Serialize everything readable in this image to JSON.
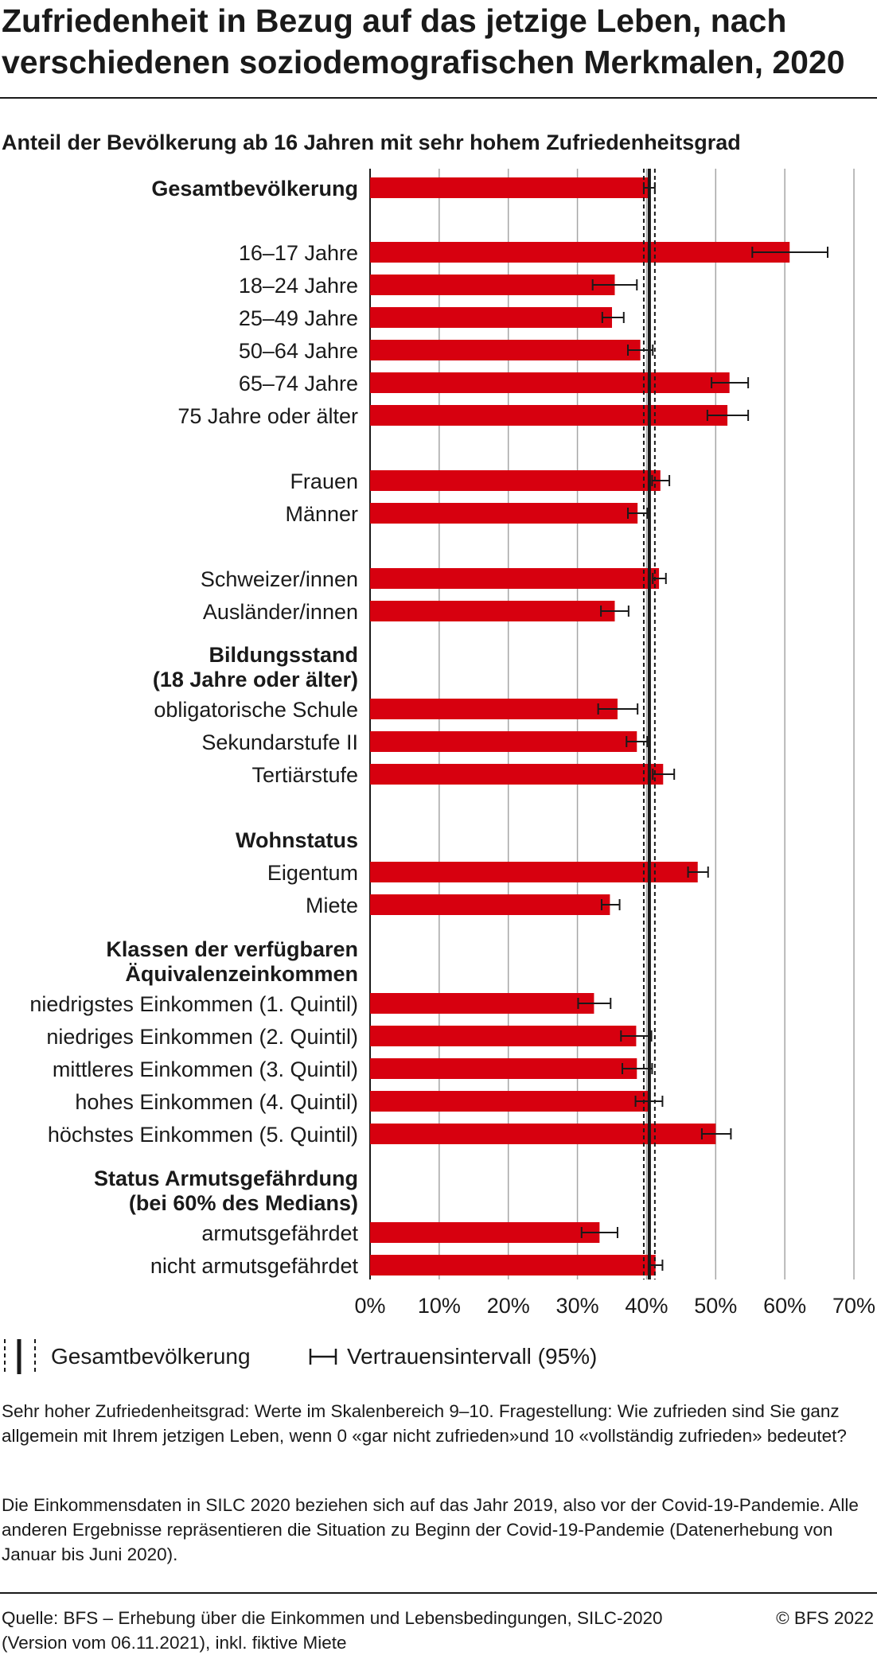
{
  "title": "Zufriedenheit in Bezug auf das jetzige Leben, nach verschiedenen soziodemografischen Merkmalen, 2020",
  "chart_data": {
    "type": "bar",
    "orientation": "horizontal",
    "subtitle": "Anteil der Bevölkerung ab 16 Jahren mit sehr hohem Zufriedenheitsgrad",
    "bar_color": "#d7000f",
    "xlim": [
      0,
      70
    ],
    "xticks": [
      "0%",
      "10%",
      "20%",
      "30%",
      "40%",
      "50%",
      "60%",
      "70%"
    ],
    "reference": {
      "label": "Gesamtbevölkerung",
      "value": 40.4,
      "ci": [
        39.6,
        41.2
      ]
    },
    "rows": [
      {
        "label": "Gesamtbevölkerung",
        "bold": true,
        "value": 40.4,
        "ci": [
          39.6,
          41.2
        ]
      },
      {
        "label": "16–17 Jahre",
        "value": 60.7,
        "ci": [
          55.3,
          66.2
        ]
      },
      {
        "label": "18–24 Jahre",
        "value": 35.4,
        "ci": [
          32.2,
          38.6
        ]
      },
      {
        "label": "25–49 Jahre",
        "value": 35.0,
        "ci": [
          33.6,
          36.7
        ]
      },
      {
        "label": "50–64 Jahre",
        "value": 39.1,
        "ci": [
          37.3,
          40.9
        ]
      },
      {
        "label": "65–74 Jahre",
        "value": 52.0,
        "ci": [
          49.4,
          54.7
        ]
      },
      {
        "label": "75 Jahre oder älter",
        "value": 51.7,
        "ci": [
          48.8,
          54.7
        ]
      },
      {
        "label": "Frauen",
        "value": 42.0,
        "ci": [
          40.8,
          43.3
        ]
      },
      {
        "label": "Männer",
        "value": 38.7,
        "ci": [
          37.3,
          40.1
        ]
      },
      {
        "label": "Schweizer/innen",
        "value": 41.8,
        "ci": [
          40.9,
          42.8
        ]
      },
      {
        "label": "Ausländer/innen",
        "value": 35.4,
        "ci": [
          33.4,
          37.4
        ]
      },
      {
        "label": "Bildungsstand",
        "bold": true
      },
      {
        "label": "(18 Jahre oder älter)",
        "bold": true
      },
      {
        "label": "obligatorische Schule",
        "value": 35.8,
        "ci": [
          33.0,
          38.7
        ]
      },
      {
        "label": "Sekundarstufe II",
        "value": 38.6,
        "ci": [
          37.1,
          40.1
        ]
      },
      {
        "label": "Tertiärstufe",
        "value": 42.4,
        "ci": [
          40.9,
          44.0
        ]
      },
      {
        "label": "Wohnstatus",
        "bold": true
      },
      {
        "label": "Eigentum",
        "value": 47.4,
        "ci": [
          46.0,
          48.9
        ]
      },
      {
        "label": "Miete",
        "value": 34.7,
        "ci": [
          33.5,
          36.1
        ]
      },
      {
        "label": "Klassen der verfügbaren",
        "bold": true
      },
      {
        "label": "Äquivalenzeinkommen",
        "bold": true
      },
      {
        "label": "niedrigstes Einkommen (1. Quintil)",
        "value": 32.4,
        "ci": [
          30.1,
          34.8
        ]
      },
      {
        "label": "niedriges Einkommen (2. Quintil)",
        "value": 38.5,
        "ci": [
          36.3,
          40.7
        ]
      },
      {
        "label": "mittleres Einkommen (3. Quintil)",
        "value": 38.6,
        "ci": [
          36.5,
          40.8
        ]
      },
      {
        "label": "hohes Einkommen (4. Quintil)",
        "value": 40.4,
        "ci": [
          38.4,
          42.3
        ]
      },
      {
        "label": "höchstes Einkommen (5. Quintil)",
        "value": 50.0,
        "ci": [
          48.0,
          52.2
        ]
      },
      {
        "label": "Status Armutsgefährdung",
        "bold": true
      },
      {
        "label": "(bei 60% des Medians)",
        "bold": true
      },
      {
        "label": "armutsgefährdet",
        "value": 33.2,
        "ci": [
          30.6,
          35.8
        ]
      },
      {
        "label": "nicht armutsgefährdet",
        "value": 41.3,
        "ci": [
          40.3,
          42.3
        ]
      }
    ]
  },
  "legend": {
    "total_label": "Gesamtbevölkerung",
    "ci_label": "Vertrauensintervall (95%)"
  },
  "notes": {
    "definition": "Sehr hoher Zufriedenheitsgrad: Werte im Skalenbereich 9–10. Fragestellung: Wie zufrieden sind Sie ganz allgemein mit Ihrem jetzigen Leben, wenn 0 «gar nicht zufrieden»und 10 «vollständig zufrieden» bedeutet?",
    "income": "Die Einkommensdaten in SILC 2020 beziehen sich auf das Jahr 2019, also vor der Covid-19-Pandemie. Alle anderen Ergebnisse repräsentieren die Situation zu Beginn der Covid-19-Pandemie (Datenerhebung von Januar bis Juni 2020)."
  },
  "source": "Quelle: BFS – Erhebung über die Einkommen und Lebensbedingungen, SILC-2020 (Version vom 06.11.2021), inkl. fiktive Miete",
  "copyright": "© BFS 2022"
}
